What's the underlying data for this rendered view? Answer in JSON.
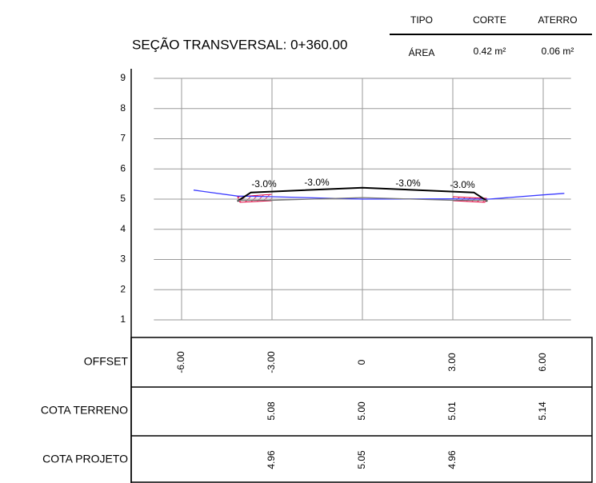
{
  "header": {
    "title": "SEÇÃO TRANSVERSAL: 0+360.00"
  },
  "area_table": {
    "header": [
      "TIPO",
      "CORTE",
      "ATERRO"
    ],
    "row": [
      "ÁREA",
      "0.42 m²",
      "0.06 m²"
    ]
  },
  "chart_data": {
    "type": "line",
    "xlim": [
      -7,
      7
    ],
    "ylim": [
      1,
      9
    ],
    "xticks": [
      {
        "value": -6,
        "label": "-6.00"
      },
      {
        "value": -3,
        "label": "-3.00"
      },
      0,
      {
        "value": 3,
        "label": "3.00"
      },
      {
        "value": 6,
        "label": "6.00"
      }
    ],
    "yticks": [
      1,
      2,
      3,
      4,
      5,
      6,
      7,
      8,
      9
    ],
    "grid": true,
    "annotations": [
      "-3.0%",
      "-3.0%",
      "-3.0%",
      "-3.0%"
    ],
    "series": [
      {
        "color": "#3b3bff",
        "x": [
          -5.6,
          -4.15,
          -3,
          0,
          3,
          4.2,
          6,
          6.7
        ],
        "values": [
          5.3,
          5.1,
          5.08,
          5.0,
          5.01,
          5.0,
          5.14,
          5.19
        ]
      },
      {
        "color": "#000000",
        "x": [
          -4.15,
          -3.7,
          0,
          3.7,
          4.15
        ],
        "values": [
          4.93,
          5.22,
          5.38,
          5.22,
          4.93
        ]
      },
      {
        "color": "#777777",
        "x": [
          -4.15,
          -3,
          0,
          3,
          4.15
        ],
        "values": [
          4.96,
          4.96,
          5.05,
          4.96,
          4.96
        ]
      }
    ]
  },
  "table": {
    "rows": [
      {
        "label": "OFFSET"
      },
      {
        "label": "COTA TERRENO",
        "values": [
          null,
          "5.08",
          "5.00",
          "5.01",
          "5.14"
        ]
      },
      {
        "label": "COTA PROJETO",
        "values": [
          null,
          "4.96",
          "5.05",
          "4.96",
          null
        ]
      }
    ]
  }
}
